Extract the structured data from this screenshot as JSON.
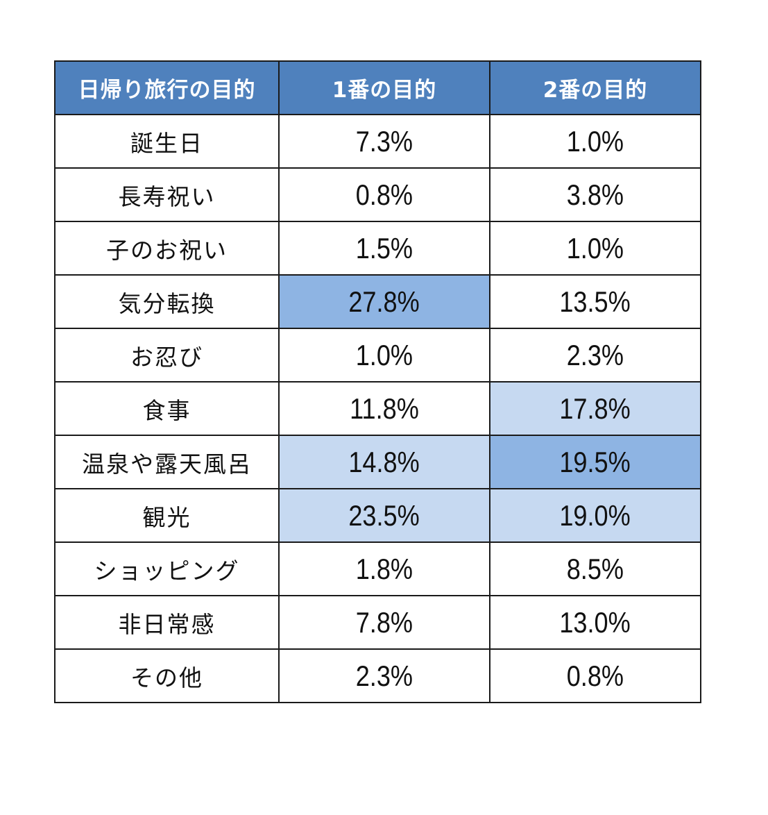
{
  "chart_data": {
    "type": "table",
    "columns": [
      "日帰り旅行の目的",
      "1番の目的",
      "2番の目的"
    ],
    "rows": [
      {
        "label": "誕生日",
        "first": "7.3%",
        "second": "1.0%"
      },
      {
        "label": "長寿祝い",
        "first": "0.8%",
        "second": "3.8%"
      },
      {
        "label": "子のお祝い",
        "first": "1.5%",
        "second": "1.0%"
      },
      {
        "label": "気分転換",
        "first": "27.8%",
        "second": "13.5%"
      },
      {
        "label": "お忍び",
        "first": "1.0%",
        "second": "2.3%"
      },
      {
        "label": "食事",
        "first": "11.8%",
        "second": "17.8%"
      },
      {
        "label": "温泉や露天風呂",
        "first": "14.8%",
        "second": "19.5%"
      },
      {
        "label": "観光",
        "first": "23.5%",
        "second": "19.0%"
      },
      {
        "label": "ショッピング",
        "first": "1.8%",
        "second": "8.5%"
      },
      {
        "label": "非日常感",
        "first": "7.8%",
        "second": "13.0%"
      },
      {
        "label": "その他",
        "first": "2.3%",
        "second": "0.8%"
      }
    ],
    "highlight": {
      "first": [
        "",
        "",
        "",
        "top",
        "",
        "",
        "high",
        "high",
        "",
        "",
        ""
      ],
      "second": [
        "",
        "",
        "",
        "",
        "",
        "high",
        "top",
        "high",
        "",
        "",
        ""
      ]
    }
  },
  "colors": {
    "header_bg": "#4f81bd",
    "header_text": "#ffffff",
    "highlight_top": "#8eb4e3",
    "highlight_high": "#c6d9f1",
    "border": "#1a1a1a"
  }
}
